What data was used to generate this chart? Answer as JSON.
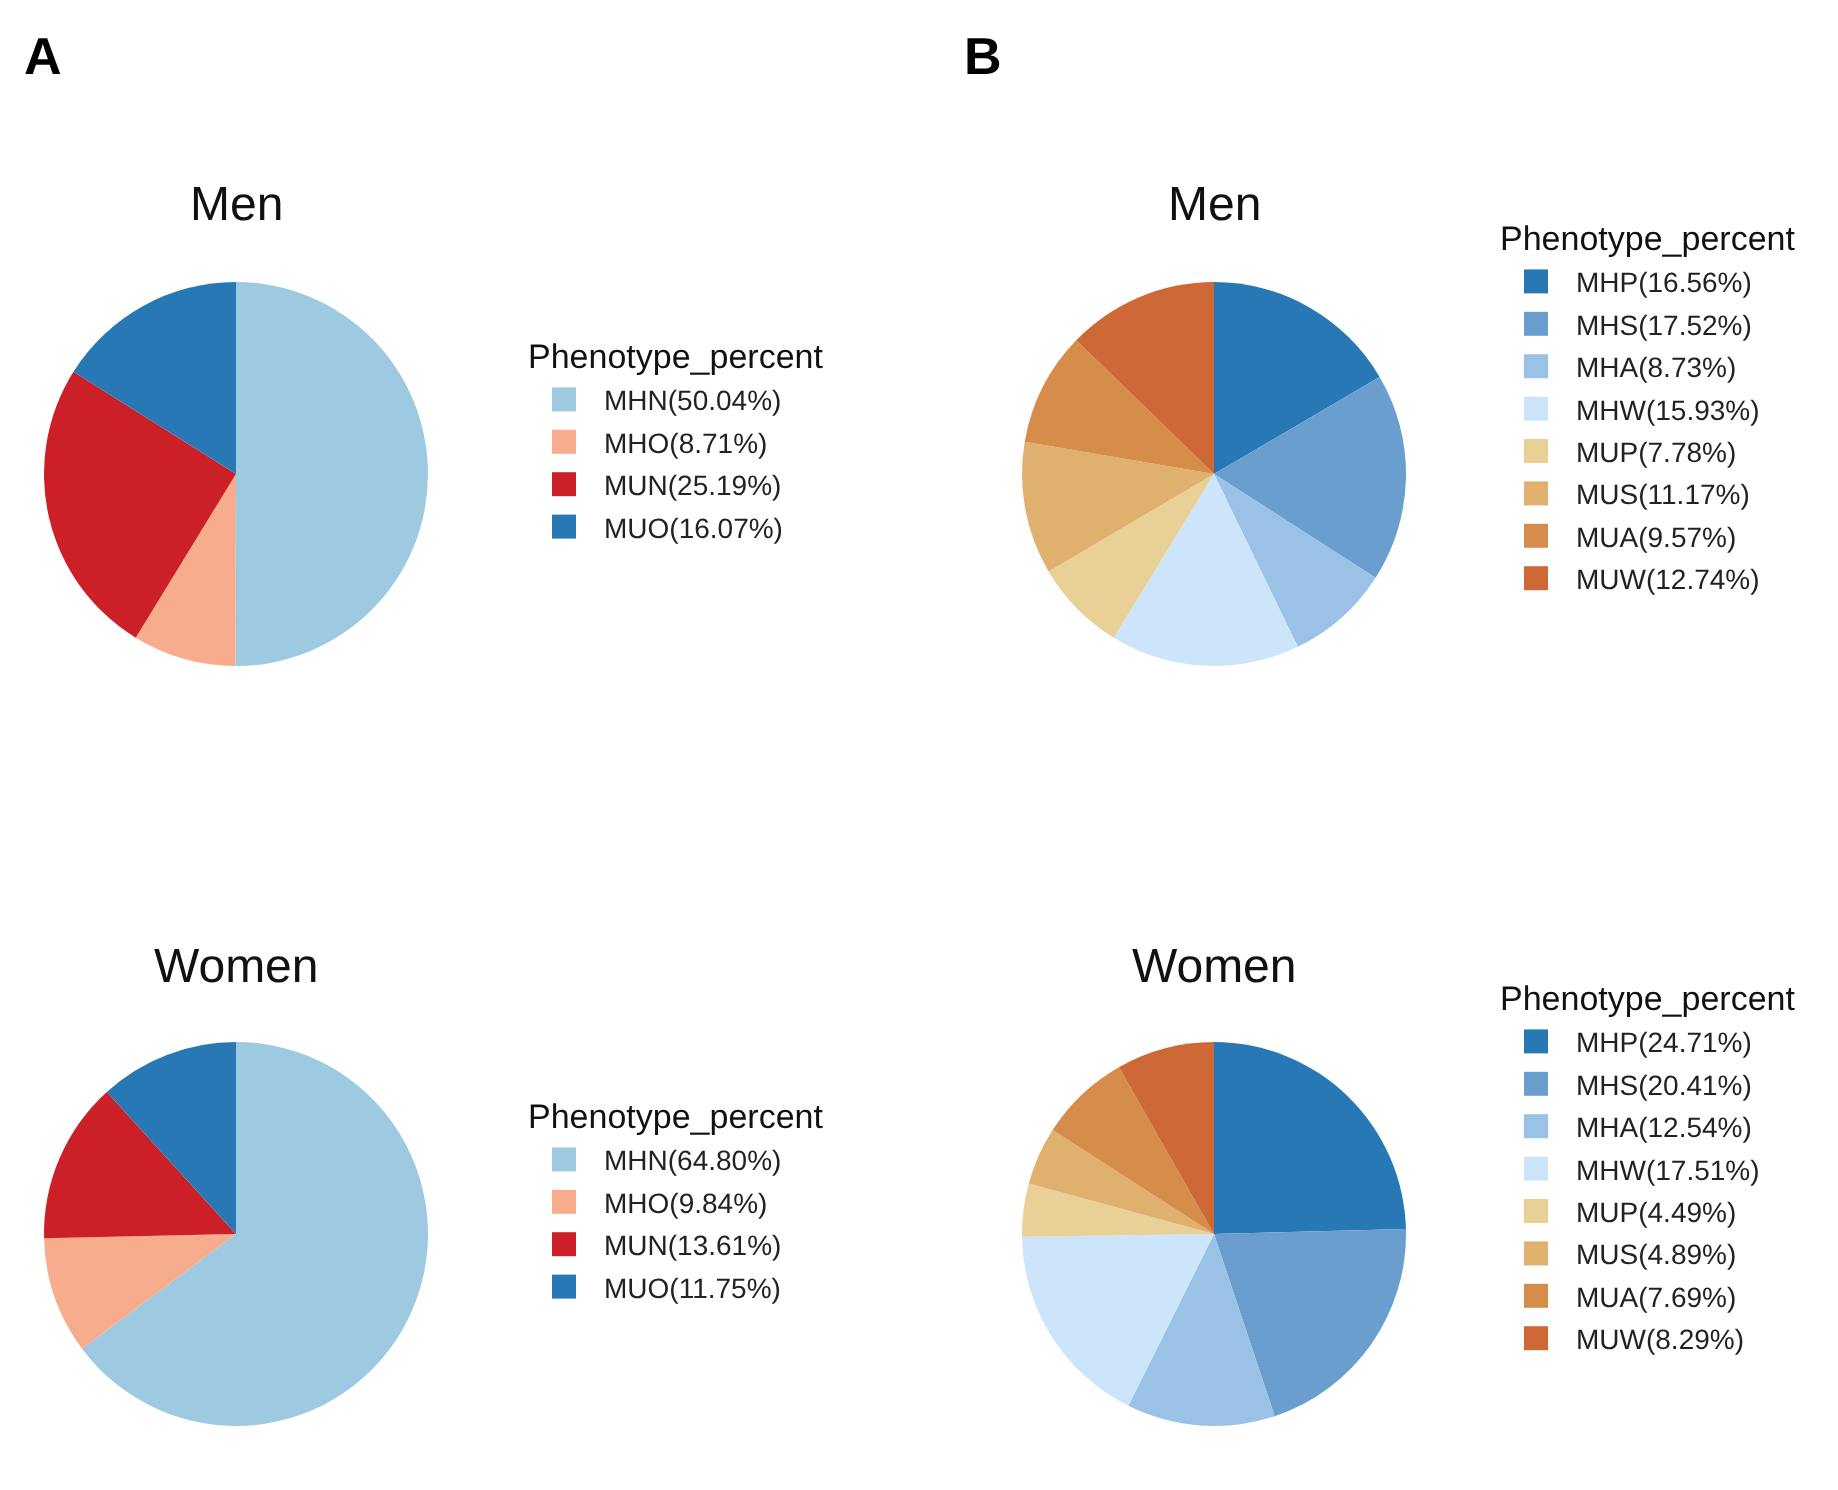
{
  "chart_data": [
    {
      "type": "pie",
      "title": "Men",
      "legend_title": "Phenotype_percent",
      "legend": "right",
      "annotations": [
        "A"
      ],
      "categories": [
        "MHN(50.04%)",
        "MHO(8.71%)",
        "MUN(25.19%)",
        "MUO(16.07%)"
      ],
      "values": [
        50.04,
        8.71,
        25.19,
        16.07
      ],
      "colors": [
        "#9ecae1",
        "#f7ad8d",
        "#cb2027",
        "#2878b5"
      ]
    },
    {
      "type": "pie",
      "title": "Men",
      "legend_title": "Phenotype_percent",
      "legend": "right",
      "annotations": [
        "B"
      ],
      "categories": [
        "MHP(16.56%)",
        "MHS(17.52%)",
        "MHA(8.73%)",
        "MHW(15.93%)",
        "MUP(7.78%)",
        "MUS(11.17%)",
        "MUA(9.57%)",
        "MUW(12.74%)"
      ],
      "values": [
        16.56,
        17.52,
        8.73,
        15.93,
        7.78,
        11.17,
        9.57,
        12.74
      ],
      "colors": [
        "#2878b5",
        "#699ecf",
        "#9ac1e6",
        "#cce5fb",
        "#e8d096",
        "#dfb06e",
        "#d68c4b",
        "#cf6837"
      ]
    },
    {
      "type": "pie",
      "title": "Women",
      "legend_title": "Phenotype_percent",
      "legend": "right",
      "categories": [
        "MHN(64.80%)",
        "MHO(9.84%)",
        "MUN(13.61%)",
        "MUO(11.75%)"
      ],
      "values": [
        64.8,
        9.84,
        13.61,
        11.75
      ],
      "colors": [
        "#9ecae1",
        "#f7ad8d",
        "#cb2027",
        "#2878b5"
      ]
    },
    {
      "type": "pie",
      "title": "Women",
      "legend_title": "Phenotype_percent",
      "legend": "right",
      "categories": [
        "MHP(24.71%)",
        "MHS(20.41%)",
        "MHA(12.54%)",
        "MHW(17.51%)",
        "MUP(4.49%)",
        "MUS(4.89%)",
        "MUA(7.69%)",
        "MUW(8.29%)"
      ],
      "values": [
        24.71,
        20.41,
        12.54,
        17.51,
        4.49,
        4.89,
        7.69,
        8.29
      ],
      "colors": [
        "#2878b5",
        "#699ecf",
        "#9ac1e6",
        "#cce5fb",
        "#e8d096",
        "#dfb06e",
        "#d68c4b",
        "#cf6837"
      ]
    }
  ]
}
